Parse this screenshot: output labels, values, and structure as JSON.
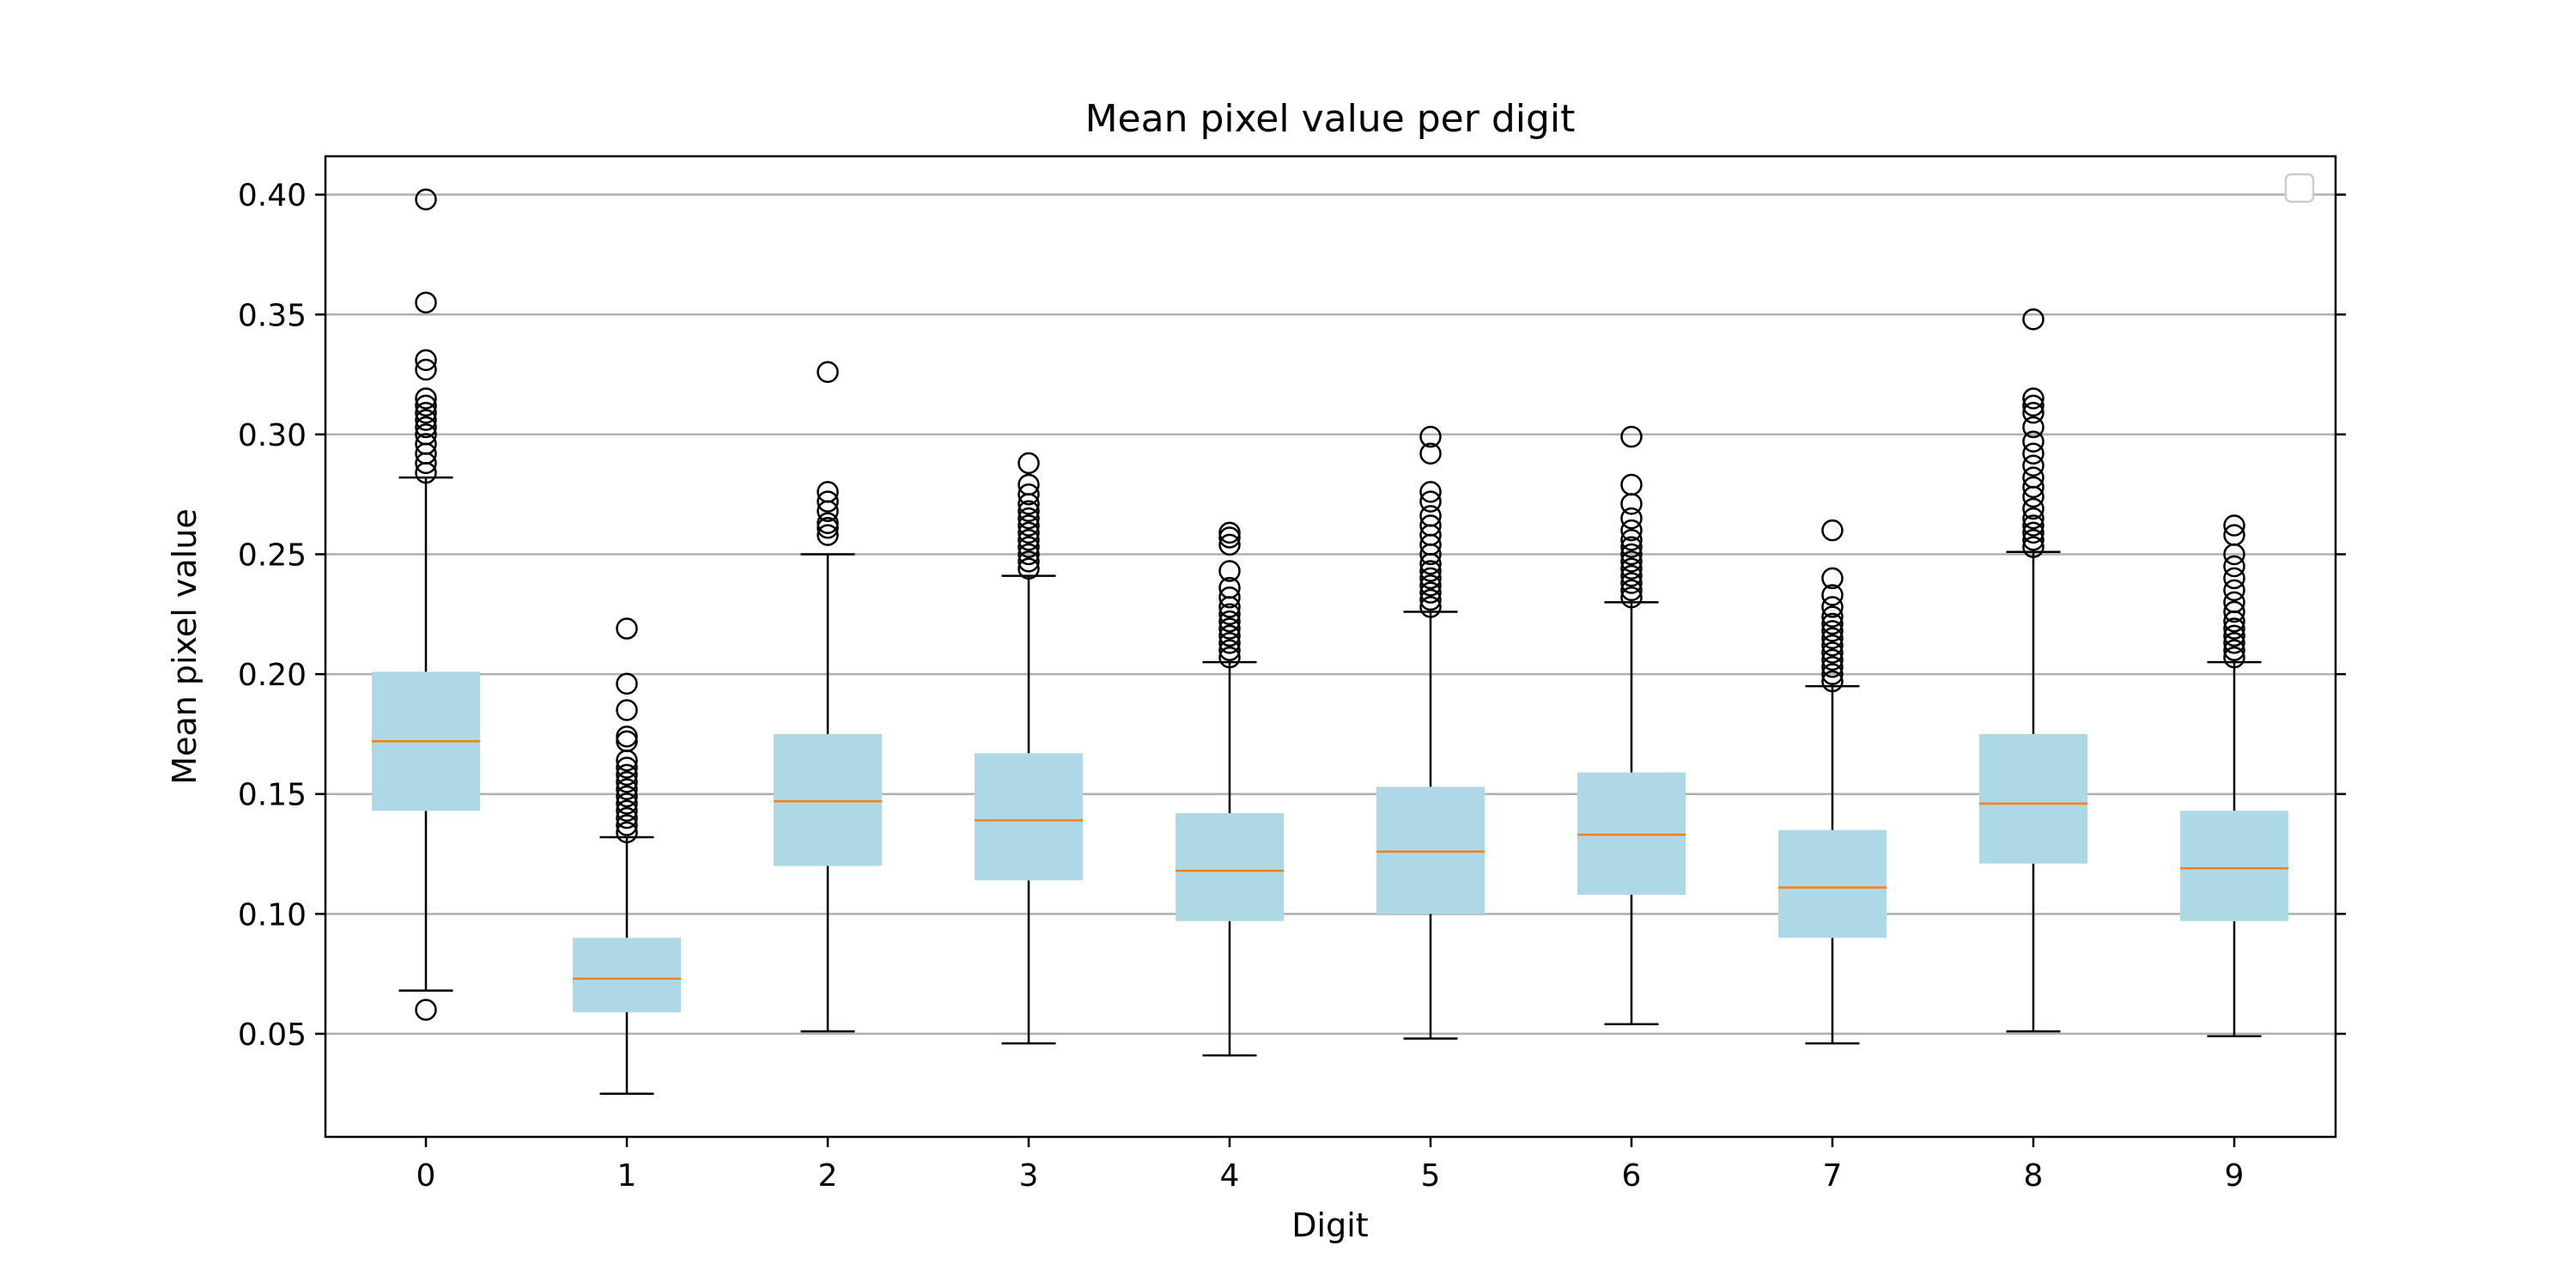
{
  "chart_data": {
    "type": "box",
    "title": "Mean pixel value per digit",
    "xlabel": "Digit",
    "ylabel": "Mean pixel value",
    "ylim": [
      0.007,
      0.416
    ],
    "yticks": [
      "0.05",
      "0.10",
      "0.15",
      "0.20",
      "0.25",
      "0.30",
      "0.35",
      "0.40"
    ],
    "grid": "horizontal",
    "legend": "top-right (empty)",
    "colors": {
      "box_fill": "#add8e6",
      "median": "#ff7f0e",
      "whisker": "#000000",
      "grid": "#b0b0b0"
    },
    "categories": [
      "0",
      "1",
      "2",
      "3",
      "4",
      "5",
      "6",
      "7",
      "8",
      "9"
    ],
    "boxes": [
      {
        "label": "0",
        "whislo": 0.068,
        "q1": 0.143,
        "med": 0.172,
        "q3": 0.201,
        "whishi": 0.282,
        "fliers": [
          0.06,
          0.284,
          0.288,
          0.292,
          0.296,
          0.3,
          0.303,
          0.306,
          0.309,
          0.312,
          0.315,
          0.327,
          0.331,
          0.355,
          0.398
        ]
      },
      {
        "label": "1",
        "whislo": 0.025,
        "q1": 0.059,
        "med": 0.073,
        "q3": 0.09,
        "whishi": 0.132,
        "fliers": [
          0.134,
          0.137,
          0.14,
          0.143,
          0.146,
          0.149,
          0.152,
          0.155,
          0.158,
          0.161,
          0.164,
          0.172,
          0.174,
          0.185,
          0.196,
          0.219
        ]
      },
      {
        "label": "2",
        "whislo": 0.051,
        "q1": 0.12,
        "med": 0.147,
        "q3": 0.175,
        "whishi": 0.25,
        "fliers": [
          0.258,
          0.261,
          0.263,
          0.268,
          0.272,
          0.276,
          0.326
        ]
      },
      {
        "label": "3",
        "whislo": 0.046,
        "q1": 0.114,
        "med": 0.139,
        "q3": 0.167,
        "whishi": 0.241,
        "fliers": [
          0.244,
          0.247,
          0.25,
          0.253,
          0.256,
          0.259,
          0.262,
          0.265,
          0.268,
          0.271,
          0.275,
          0.279,
          0.288
        ]
      },
      {
        "label": "4",
        "whislo": 0.041,
        "q1": 0.097,
        "med": 0.118,
        "q3": 0.142,
        "whishi": 0.205,
        "fliers": [
          0.207,
          0.21,
          0.213,
          0.216,
          0.219,
          0.222,
          0.225,
          0.228,
          0.232,
          0.236,
          0.243,
          0.254,
          0.257,
          0.259
        ]
      },
      {
        "label": "5",
        "whislo": 0.048,
        "q1": 0.1,
        "med": 0.126,
        "q3": 0.153,
        "whishi": 0.226,
        "fliers": [
          0.228,
          0.231,
          0.234,
          0.237,
          0.24,
          0.243,
          0.246,
          0.25,
          0.254,
          0.258,
          0.262,
          0.266,
          0.272,
          0.276,
          0.292,
          0.299
        ]
      },
      {
        "label": "6",
        "whislo": 0.054,
        "q1": 0.108,
        "med": 0.133,
        "q3": 0.159,
        "whishi": 0.23,
        "fliers": [
          0.232,
          0.235,
          0.238,
          0.241,
          0.244,
          0.247,
          0.25,
          0.253,
          0.256,
          0.26,
          0.265,
          0.271,
          0.279,
          0.299
        ]
      },
      {
        "label": "7",
        "whislo": 0.046,
        "q1": 0.09,
        "med": 0.111,
        "q3": 0.135,
        "whishi": 0.195,
        "fliers": [
          0.197,
          0.2,
          0.203,
          0.206,
          0.209,
          0.212,
          0.215,
          0.218,
          0.221,
          0.224,
          0.228,
          0.233,
          0.24,
          0.26
        ]
      },
      {
        "label": "8",
        "whislo": 0.051,
        "q1": 0.121,
        "med": 0.146,
        "q3": 0.175,
        "whishi": 0.251,
        "fliers": [
          0.253,
          0.256,
          0.259,
          0.262,
          0.265,
          0.269,
          0.274,
          0.278,
          0.282,
          0.287,
          0.292,
          0.297,
          0.303,
          0.309,
          0.312,
          0.315,
          0.348
        ]
      },
      {
        "label": "9",
        "whislo": 0.049,
        "q1": 0.097,
        "med": 0.119,
        "q3": 0.143,
        "whishi": 0.205,
        "fliers": [
          0.207,
          0.21,
          0.213,
          0.216,
          0.219,
          0.222,
          0.226,
          0.23,
          0.235,
          0.24,
          0.245,
          0.25,
          0.258,
          0.262
        ]
      }
    ]
  }
}
